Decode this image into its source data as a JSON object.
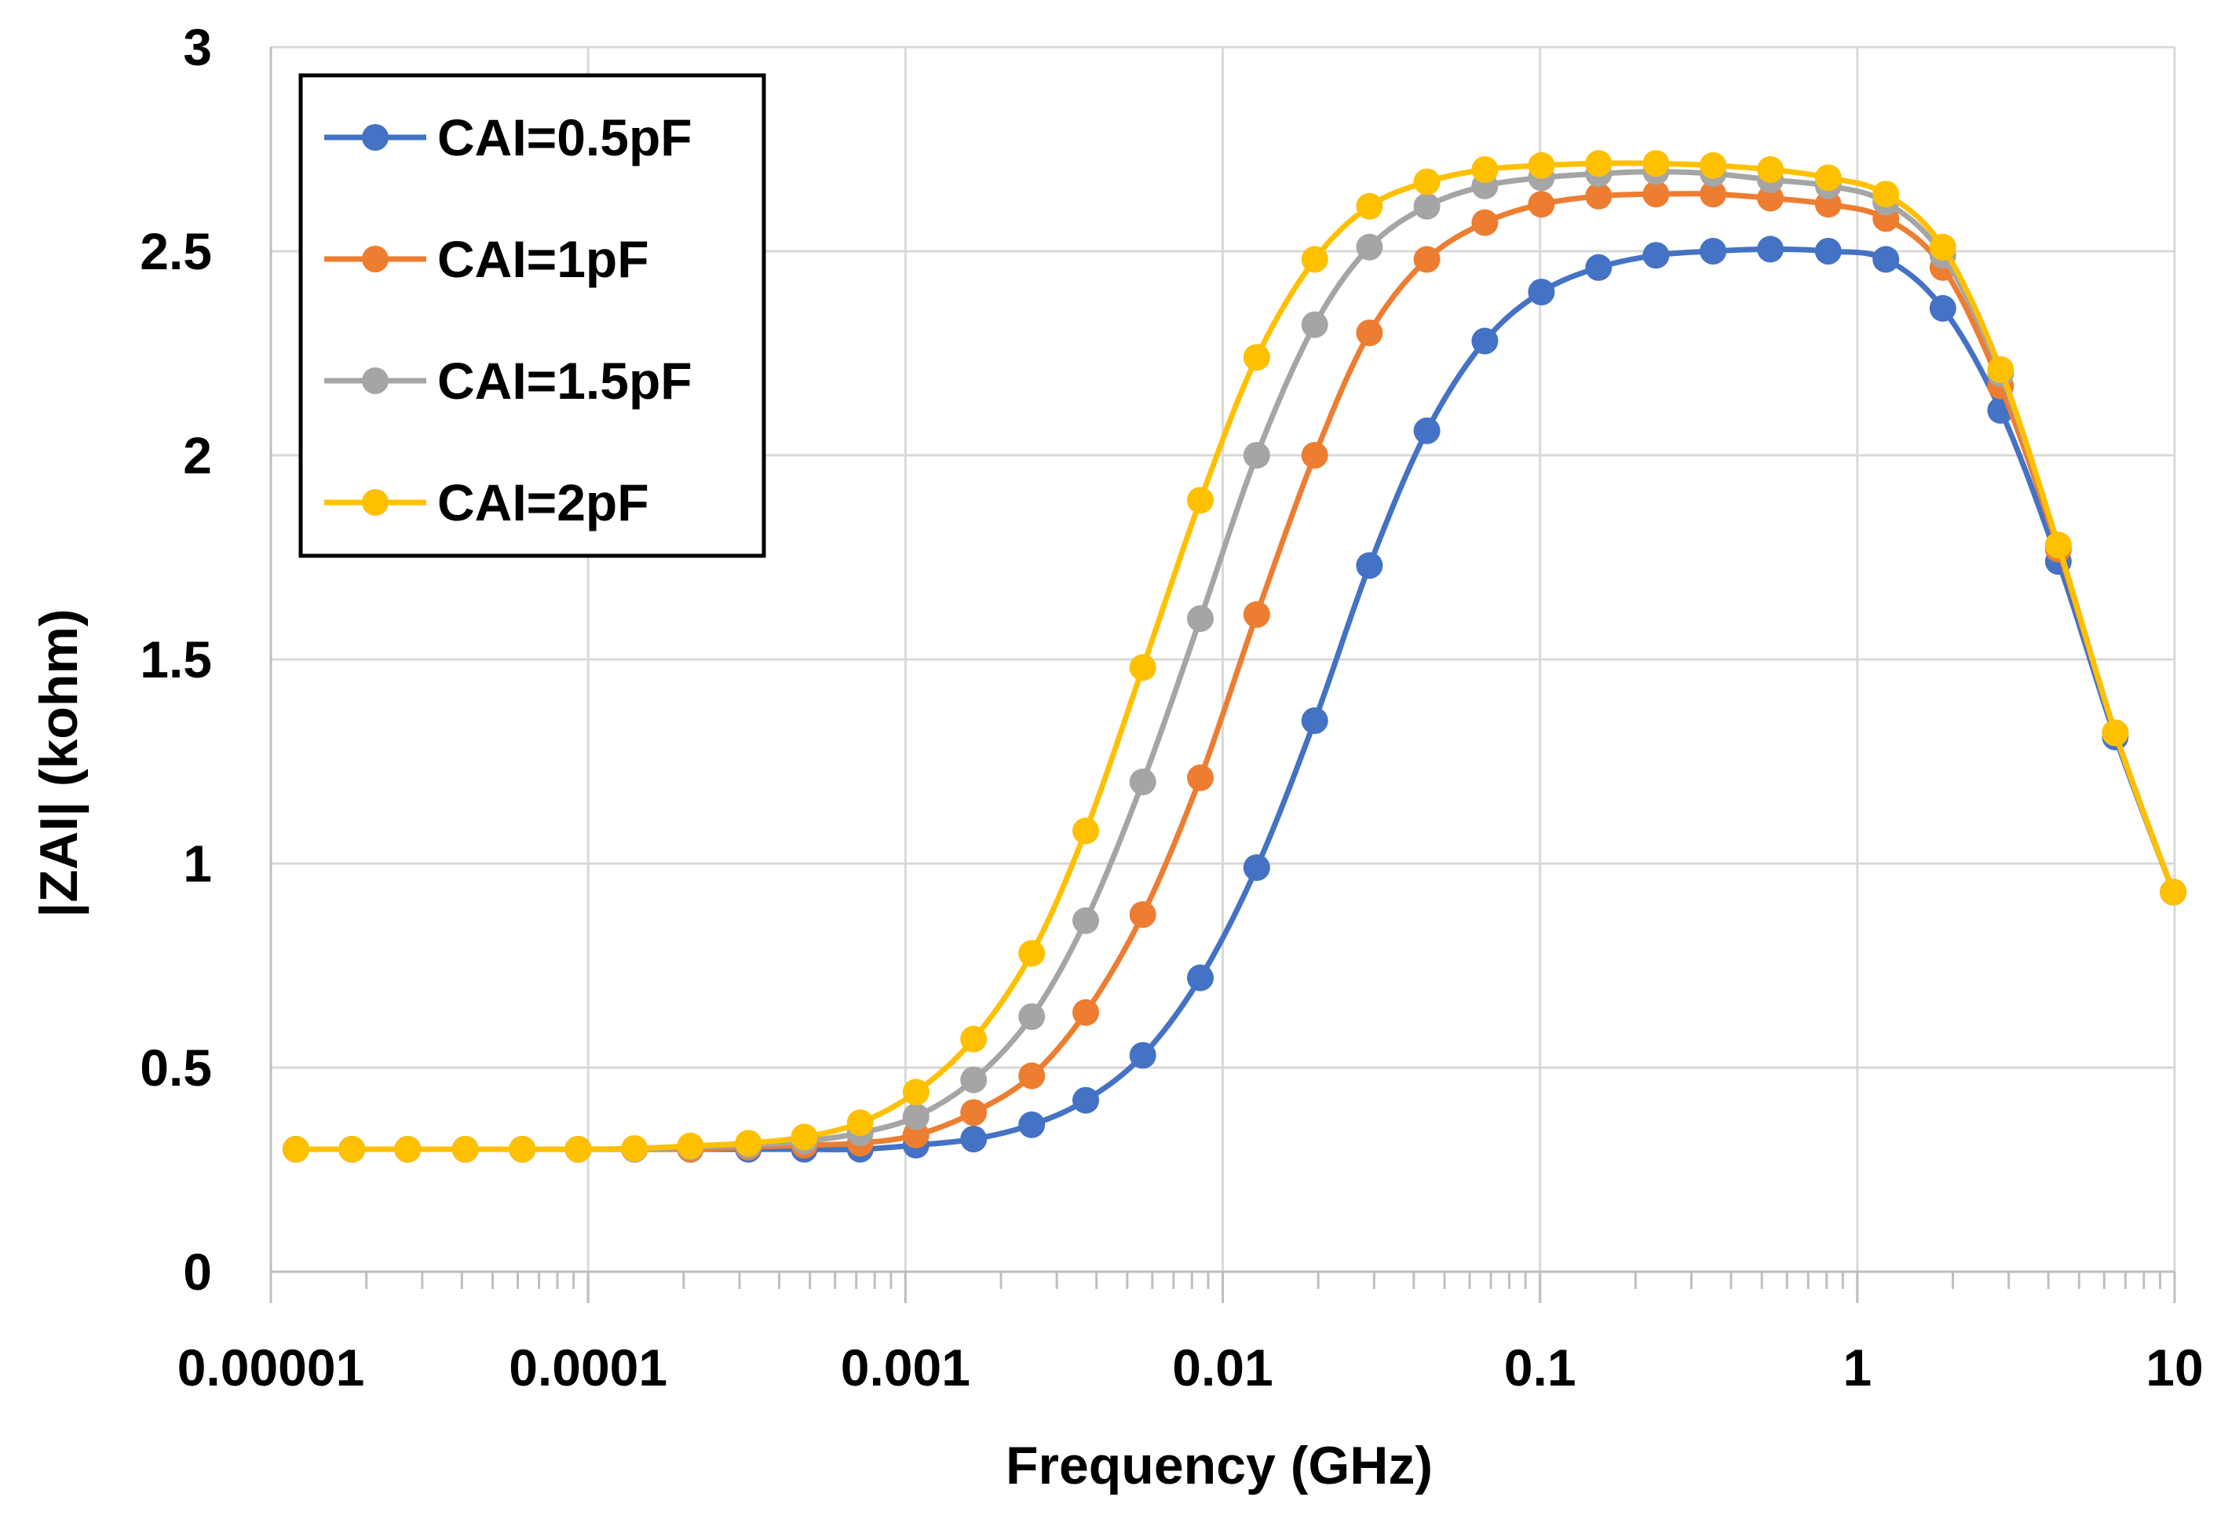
{
  "chart_data": {
    "type": "line",
    "title": "",
    "xlabel": "Frequency (GHz)",
    "ylabel": "|ZAI| (kohm)",
    "xscale": "log",
    "xlim": [
      1e-05,
      10
    ],
    "ylim": [
      0,
      3
    ],
    "x_tick_labels": [
      "0.00001",
      "0.0001",
      "0.001",
      "0.01",
      "0.1",
      "1",
      "10"
    ],
    "x_tick_values": [
      1e-05,
      0.0001,
      0.001,
      0.01,
      0.1,
      1,
      10
    ],
    "y_tick_labels": [
      "0",
      "0.5",
      "1",
      "1.5",
      "2",
      "2.5",
      "3"
    ],
    "y_tick_values": [
      0,
      0.5,
      1,
      1.5,
      2,
      2.5,
      3
    ],
    "grid": true,
    "legend_position": "top-left",
    "x": [
      1.2e-05,
      1.8e-05,
      2.7e-05,
      4.1e-05,
      6.2e-05,
      9.3e-05,
      0.00014,
      0.00021,
      0.00032,
      0.00048,
      0.00072,
      0.00108,
      0.00164,
      0.0025,
      0.0037,
      0.0056,
      0.0085,
      0.0128,
      0.0195,
      0.029,
      0.044,
      0.067,
      0.101,
      0.153,
      0.232,
      0.351,
      0.532,
      0.81,
      1.23,
      1.86,
      2.83,
      4.3,
      6.5,
      9.9
    ],
    "series": [
      {
        "name": "CAI=0.5pF",
        "color": "#4472C4",
        "values": [
          0.3,
          0.3,
          0.3,
          0.3,
          0.3,
          0.3,
          0.3,
          0.3,
          0.3,
          0.3,
          0.3,
          0.31,
          0.325,
          0.36,
          0.42,
          0.53,
          0.72,
          0.99,
          1.35,
          1.73,
          2.06,
          2.28,
          2.4,
          2.46,
          2.49,
          2.5,
          2.505,
          2.5,
          2.48,
          2.36,
          2.11,
          1.74,
          1.31,
          0.93
        ]
      },
      {
        "name": "CAI=1pF",
        "color": "#ED7D31",
        "values": [
          0.3,
          0.3,
          0.3,
          0.3,
          0.3,
          0.3,
          0.3,
          0.3,
          0.305,
          0.31,
          0.315,
          0.335,
          0.39,
          0.48,
          0.635,
          0.875,
          1.21,
          1.61,
          2.0,
          2.3,
          2.48,
          2.57,
          2.615,
          2.635,
          2.64,
          2.64,
          2.63,
          2.615,
          2.58,
          2.46,
          2.17,
          1.77,
          1.32,
          0.93
        ]
      },
      {
        "name": "CAI=1.5pF",
        "color": "#A5A5A5",
        "values": [
          0.3,
          0.3,
          0.3,
          0.3,
          0.3,
          0.3,
          0.3,
          0.305,
          0.31,
          0.32,
          0.34,
          0.38,
          0.47,
          0.625,
          0.86,
          1.2,
          1.6,
          2.0,
          2.32,
          2.51,
          2.61,
          2.66,
          2.68,
          2.69,
          2.695,
          2.69,
          2.675,
          2.66,
          2.62,
          2.49,
          2.2,
          1.78,
          1.32,
          0.93
        ]
      },
      {
        "name": "CAI=2pF",
        "color": "#FFC000",
        "values": [
          0.3,
          0.3,
          0.3,
          0.3,
          0.3,
          0.3,
          0.302,
          0.308,
          0.315,
          0.33,
          0.365,
          0.44,
          0.57,
          0.78,
          1.08,
          1.48,
          1.89,
          2.24,
          2.48,
          2.61,
          2.67,
          2.7,
          2.71,
          2.715,
          2.715,
          2.71,
          2.7,
          2.68,
          2.64,
          2.51,
          2.21,
          1.78,
          1.32,
          0.93
        ]
      }
    ]
  }
}
